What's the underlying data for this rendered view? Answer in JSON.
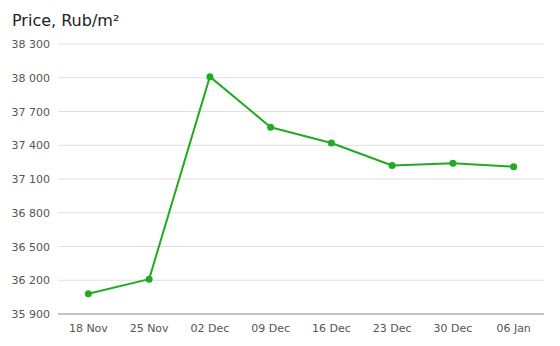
{
  "chart_data": {
    "type": "line",
    "title": "Price, Rub/m²",
    "categories": [
      "18 Nov",
      "25 Nov",
      "02 Dec",
      "09 Dec",
      "16 Dec",
      "23 Dec",
      "30 Dec",
      "06 Jan"
    ],
    "values": [
      36080,
      36210,
      38010,
      37560,
      37420,
      37220,
      37240,
      37210
    ],
    "color": "#22aa22",
    "marker": "circle",
    "ylim": [
      35900,
      38300
    ],
    "yticks": [
      {
        "value": 35900,
        "label": "35 900"
      },
      {
        "value": 36200,
        "label": "36 200"
      },
      {
        "value": 36500,
        "label": "36 500"
      },
      {
        "value": 36800,
        "label": "36 800"
      },
      {
        "value": 37100,
        "label": "37 100"
      },
      {
        "value": 37400,
        "label": "37 400"
      },
      {
        "value": 37700,
        "label": "37 700"
      },
      {
        "value": 38000,
        "label": "38 000"
      },
      {
        "value": 38300,
        "label": "38 300"
      }
    ],
    "grid": true
  }
}
